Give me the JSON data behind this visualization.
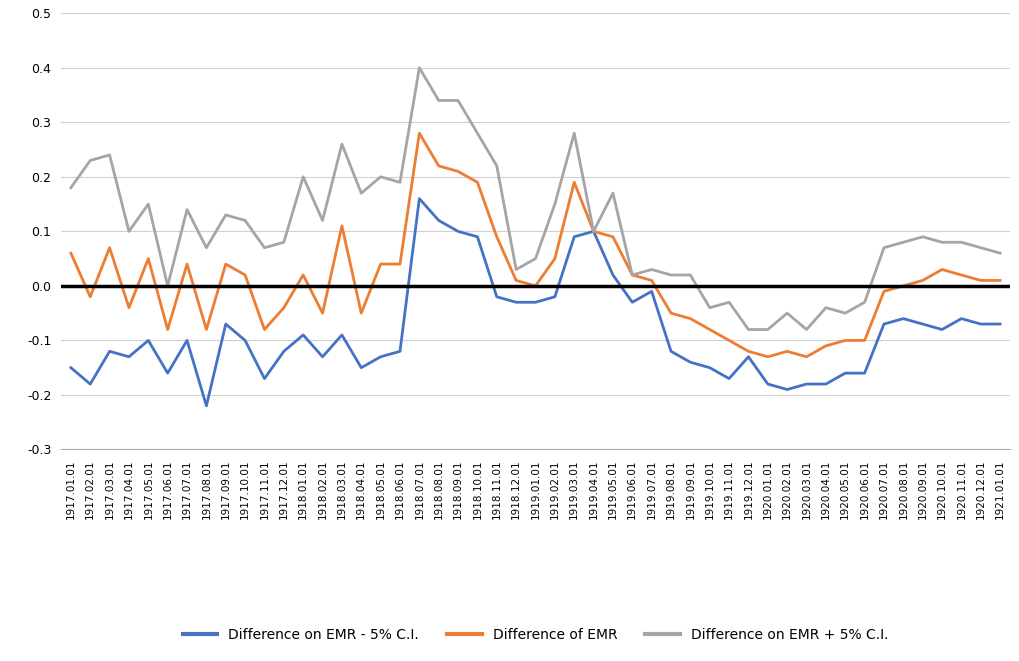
{
  "labels": [
    "1917.01.01",
    "1917.02.01",
    "1917.03.01",
    "1917.04.01",
    "1917.05.01",
    "1917.06.01",
    "1917.07.01",
    "1917.08.01",
    "1917.09.01",
    "1917.10.01",
    "1917.11.01",
    "1917.12.01",
    "1918.01.01",
    "1918.02.01",
    "1918.03.01",
    "1918.04.01",
    "1918.05.01",
    "1918.06.01",
    "1918.07.01",
    "1918.08.01",
    "1918.09.01",
    "1918.10.01",
    "1918.11.01",
    "1918.12.01",
    "1919.01.01",
    "1919.02.01",
    "1919.03.01",
    "1919.04.01",
    "1919.05.01",
    "1919.06.01",
    "1919.07.01",
    "1919.08.01",
    "1919.09.01",
    "1919.10.01",
    "1919.11.01",
    "1919.12.01",
    "1920.01.01",
    "1920.02.01",
    "1920.03.01",
    "1920.04.01",
    "1920.05.01",
    "1920.06.01",
    "1920.07.01",
    "1920.08.01",
    "1920.09.01",
    "1920.10.01",
    "1920.11.01",
    "1920.12.01",
    "1921.01.01"
  ],
  "emr": [
    0.06,
    -0.02,
    0.07,
    -0.04,
    0.05,
    -0.08,
    0.04,
    -0.08,
    0.04,
    0.02,
    -0.08,
    -0.04,
    0.02,
    -0.05,
    0.11,
    -0.05,
    0.04,
    0.04,
    0.28,
    0.22,
    0.21,
    0.19,
    0.09,
    0.01,
    0.0,
    0.05,
    0.19,
    0.1,
    0.09,
    0.02,
    0.01,
    -0.05,
    -0.06,
    -0.08,
    -0.1,
    -0.12,
    -0.13,
    -0.12,
    -0.13,
    -0.11,
    -0.1,
    -0.1,
    -0.01,
    0.0,
    0.01,
    0.03,
    0.02,
    0.01,
    0.01
  ],
  "emr_minus": [
    -0.15,
    -0.18,
    -0.12,
    -0.13,
    -0.1,
    -0.16,
    -0.1,
    -0.22,
    -0.07,
    -0.1,
    -0.17,
    -0.12,
    -0.09,
    -0.13,
    -0.09,
    -0.15,
    -0.13,
    -0.12,
    0.16,
    0.12,
    0.1,
    0.09,
    -0.02,
    -0.03,
    -0.03,
    -0.02,
    0.09,
    0.1,
    0.02,
    -0.03,
    -0.01,
    -0.12,
    -0.14,
    -0.15,
    -0.17,
    -0.13,
    -0.18,
    -0.19,
    -0.18,
    -0.18,
    -0.16,
    -0.16,
    -0.07,
    -0.06,
    -0.07,
    -0.08,
    -0.06,
    -0.07,
    -0.07
  ],
  "emr_plus": [
    0.18,
    0.23,
    0.24,
    0.1,
    0.15,
    0.0,
    0.14,
    0.07,
    0.13,
    0.12,
    0.07,
    0.08,
    0.2,
    0.12,
    0.26,
    0.17,
    0.2,
    0.19,
    0.4,
    0.34,
    0.34,
    0.28,
    0.22,
    0.03,
    0.05,
    0.15,
    0.28,
    0.1,
    0.17,
    0.02,
    0.03,
    0.02,
    0.02,
    -0.04,
    -0.03,
    -0.08,
    -0.08,
    -0.05,
    -0.08,
    -0.04,
    -0.05,
    -0.03,
    0.07,
    0.08,
    0.09,
    0.08,
    0.08,
    0.07,
    0.06
  ],
  "emr_color": "#ED7D31",
  "emr_minus_color": "#4472C4",
  "emr_plus_color": "#A5A5A5",
  "zero_line_color": "#000000",
  "background_color": "#FFFFFF",
  "grid_color": "#D0D0D0",
  "ylim": [
    -0.3,
    0.5
  ],
  "yticks": [
    -0.3,
    -0.2,
    -0.1,
    0.0,
    0.1,
    0.2,
    0.3,
    0.4,
    0.5
  ],
  "legend_labels": [
    "Difference on EMR - 5% C.I.",
    "Difference of EMR",
    "Difference on EMR + 5% C.I."
  ],
  "line_width": 2.0
}
